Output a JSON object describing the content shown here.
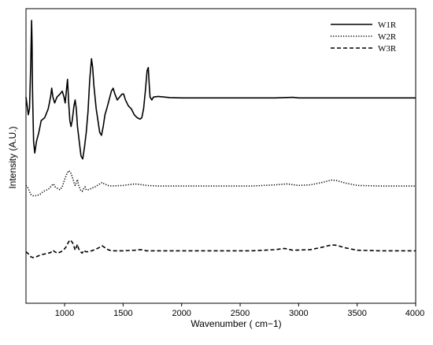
{
  "chart_data": {
    "type": "line",
    "title": "",
    "xlabel": "Wavenumber ( cm−1)",
    "ylabel": "Intensity (A.U.)",
    "xlim": [
      670,
      4000
    ],
    "ylim": [
      0,
      1
    ],
    "xticks": [
      1000,
      1500,
      2000,
      2500,
      3000,
      3500,
      4000
    ],
    "yticks_visible": false,
    "legend_position": "top-right",
    "series": [
      {
        "name": "W1R",
        "style": "solid",
        "color": "#000000",
        "points": [
          [
            670,
            0.7
          ],
          [
            690,
            0.64
          ],
          [
            700,
            0.66
          ],
          [
            710,
            0.8
          ],
          [
            718,
            0.96
          ],
          [
            722,
            0.88
          ],
          [
            726,
            0.72
          ],
          [
            735,
            0.55
          ],
          [
            745,
            0.51
          ],
          [
            760,
            0.55
          ],
          [
            780,
            0.58
          ],
          [
            800,
            0.62
          ],
          [
            830,
            0.63
          ],
          [
            860,
            0.66
          ],
          [
            880,
            0.7
          ],
          [
            890,
            0.73
          ],
          [
            900,
            0.7
          ],
          [
            915,
            0.68
          ],
          [
            935,
            0.7
          ],
          [
            960,
            0.71
          ],
          [
            980,
            0.72
          ],
          [
            995,
            0.7
          ],
          [
            1005,
            0.68
          ],
          [
            1015,
            0.72
          ],
          [
            1025,
            0.76
          ],
          [
            1035,
            0.68
          ],
          [
            1045,
            0.62
          ],
          [
            1055,
            0.6
          ],
          [
            1065,
            0.62
          ],
          [
            1080,
            0.67
          ],
          [
            1090,
            0.69
          ],
          [
            1100,
            0.66
          ],
          [
            1110,
            0.6
          ],
          [
            1125,
            0.55
          ],
          [
            1140,
            0.5
          ],
          [
            1155,
            0.49
          ],
          [
            1170,
            0.53
          ],
          [
            1185,
            0.58
          ],
          [
            1200,
            0.65
          ],
          [
            1215,
            0.76
          ],
          [
            1230,
            0.83
          ],
          [
            1240,
            0.8
          ],
          [
            1250,
            0.74
          ],
          [
            1260,
            0.7
          ],
          [
            1270,
            0.66
          ],
          [
            1285,
            0.62
          ],
          [
            1300,
            0.58
          ],
          [
            1315,
            0.57
          ],
          [
            1330,
            0.6
          ],
          [
            1345,
            0.64
          ],
          [
            1360,
            0.66
          ],
          [
            1380,
            0.69
          ],
          [
            1400,
            0.72
          ],
          [
            1415,
            0.73
          ],
          [
            1430,
            0.71
          ],
          [
            1450,
            0.69
          ],
          [
            1470,
            0.7
          ],
          [
            1490,
            0.71
          ],
          [
            1505,
            0.71
          ],
          [
            1520,
            0.69
          ],
          [
            1545,
            0.67
          ],
          [
            1570,
            0.66
          ],
          [
            1595,
            0.64
          ],
          [
            1620,
            0.63
          ],
          [
            1645,
            0.625
          ],
          [
            1660,
            0.63
          ],
          [
            1675,
            0.66
          ],
          [
            1690,
            0.72
          ],
          [
            1705,
            0.79
          ],
          [
            1715,
            0.8
          ],
          [
            1722,
            0.75
          ],
          [
            1730,
            0.7
          ],
          [
            1745,
            0.69
          ],
          [
            1760,
            0.7
          ],
          [
            1800,
            0.702
          ],
          [
            1900,
            0.698
          ],
          [
            2000,
            0.697
          ],
          [
            2200,
            0.697
          ],
          [
            2400,
            0.697
          ],
          [
            2600,
            0.697
          ],
          [
            2800,
            0.697
          ],
          [
            2950,
            0.699
          ],
          [
            3000,
            0.697
          ],
          [
            3200,
            0.697
          ],
          [
            3400,
            0.697
          ],
          [
            3600,
            0.697
          ],
          [
            3800,
            0.697
          ],
          [
            4000,
            0.697
          ]
        ]
      },
      {
        "name": "W2R",
        "style": "dotted",
        "color": "#000000",
        "points": [
          [
            670,
            0.4
          ],
          [
            690,
            0.39
          ],
          [
            710,
            0.37
          ],
          [
            730,
            0.365
          ],
          [
            760,
            0.365
          ],
          [
            790,
            0.37
          ],
          [
            820,
            0.38
          ],
          [
            850,
            0.385
          ],
          [
            870,
            0.39
          ],
          [
            890,
            0.4
          ],
          [
            905,
            0.405
          ],
          [
            920,
            0.395
          ],
          [
            940,
            0.39
          ],
          [
            960,
            0.385
          ],
          [
            980,
            0.395
          ],
          [
            1000,
            0.42
          ],
          [
            1020,
            0.44
          ],
          [
            1035,
            0.45
          ],
          [
            1050,
            0.445
          ],
          [
            1065,
            0.43
          ],
          [
            1080,
            0.41
          ],
          [
            1090,
            0.4
          ],
          [
            1100,
            0.41
          ],
          [
            1110,
            0.42
          ],
          [
            1120,
            0.4
          ],
          [
            1135,
            0.385
          ],
          [
            1150,
            0.38
          ],
          [
            1165,
            0.39
          ],
          [
            1175,
            0.395
          ],
          [
            1185,
            0.385
          ],
          [
            1200,
            0.385
          ],
          [
            1230,
            0.39
          ],
          [
            1260,
            0.395
          ],
          [
            1300,
            0.405
          ],
          [
            1320,
            0.41
          ],
          [
            1340,
            0.405
          ],
          [
            1370,
            0.4
          ],
          [
            1400,
            0.398
          ],
          [
            1500,
            0.4
          ],
          [
            1600,
            0.405
          ],
          [
            1650,
            0.403
          ],
          [
            1700,
            0.4
          ],
          [
            1800,
            0.398
          ],
          [
            2000,
            0.398
          ],
          [
            2200,
            0.398
          ],
          [
            2400,
            0.398
          ],
          [
            2600,
            0.398
          ],
          [
            2800,
            0.402
          ],
          [
            2900,
            0.405
          ],
          [
            3000,
            0.4
          ],
          [
            3100,
            0.402
          ],
          [
            3200,
            0.41
          ],
          [
            3280,
            0.418
          ],
          [
            3320,
            0.417
          ],
          [
            3400,
            0.408
          ],
          [
            3500,
            0.4
          ],
          [
            3700,
            0.398
          ],
          [
            4000,
            0.398
          ]
        ]
      },
      {
        "name": "W3R",
        "style": "dashed",
        "color": "#000000",
        "points": [
          [
            670,
            0.175
          ],
          [
            690,
            0.168
          ],
          [
            710,
            0.158
          ],
          [
            730,
            0.155
          ],
          [
            760,
            0.158
          ],
          [
            800,
            0.165
          ],
          [
            840,
            0.168
          ],
          [
            880,
            0.172
          ],
          [
            900,
            0.18
          ],
          [
            915,
            0.175
          ],
          [
            940,
            0.17
          ],
          [
            970,
            0.175
          ],
          [
            990,
            0.18
          ],
          [
            1010,
            0.19
          ],
          [
            1030,
            0.205
          ],
          [
            1045,
            0.215
          ],
          [
            1060,
            0.21
          ],
          [
            1075,
            0.2
          ],
          [
            1090,
            0.18
          ],
          [
            1100,
            0.19
          ],
          [
            1110,
            0.2
          ],
          [
            1120,
            0.185
          ],
          [
            1135,
            0.175
          ],
          [
            1150,
            0.17
          ],
          [
            1165,
            0.18
          ],
          [
            1180,
            0.175
          ],
          [
            1200,
            0.175
          ],
          [
            1230,
            0.178
          ],
          [
            1260,
            0.182
          ],
          [
            1300,
            0.19
          ],
          [
            1320,
            0.195
          ],
          [
            1340,
            0.19
          ],
          [
            1370,
            0.182
          ],
          [
            1400,
            0.178
          ],
          [
            1500,
            0.178
          ],
          [
            1600,
            0.18
          ],
          [
            1650,
            0.182
          ],
          [
            1700,
            0.178
          ],
          [
            1800,
            0.178
          ],
          [
            2000,
            0.178
          ],
          [
            2200,
            0.178
          ],
          [
            2400,
            0.178
          ],
          [
            2600,
            0.178
          ],
          [
            2800,
            0.182
          ],
          [
            2880,
            0.186
          ],
          [
            2950,
            0.18
          ],
          [
            3100,
            0.182
          ],
          [
            3200,
            0.19
          ],
          [
            3280,
            0.198
          ],
          [
            3320,
            0.197
          ],
          [
            3400,
            0.188
          ],
          [
            3500,
            0.18
          ],
          [
            3700,
            0.178
          ],
          [
            4000,
            0.178
          ]
        ]
      }
    ]
  }
}
